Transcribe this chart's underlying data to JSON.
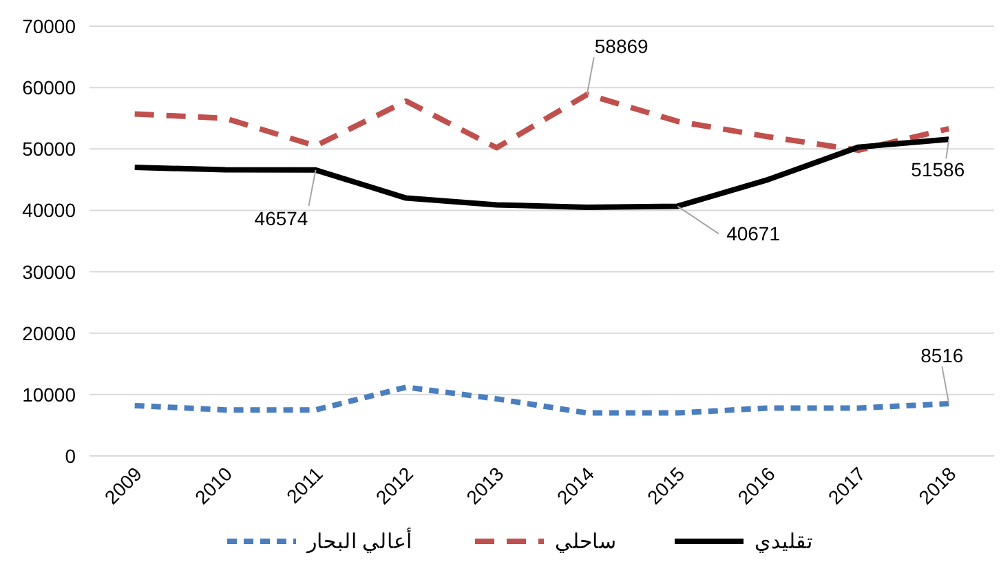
{
  "chart_data": {
    "type": "line",
    "categories": [
      "2009",
      "2010",
      "2011",
      "2012",
      "2013",
      "2014",
      "2015",
      "2016",
      "2017",
      "2018"
    ],
    "series": [
      {
        "name": "أعالي البحار",
        "color": "#4a7ebf",
        "line_style": "dotted",
        "values": [
          8200,
          7500,
          7500,
          11200,
          9300,
          7000,
          7000,
          7800,
          7800,
          8516
        ],
        "value_labels": [
          null,
          null,
          null,
          null,
          null,
          null,
          null,
          null,
          null,
          "8516"
        ]
      },
      {
        "name": "ساحلي",
        "color": "#c0504d",
        "line_style": "dashed",
        "values": [
          55700,
          55000,
          50500,
          57800,
          50200,
          58869,
          54500,
          52000,
          49800,
          53300
        ],
        "value_labels": [
          null,
          null,
          null,
          null,
          null,
          "58869",
          null,
          null,
          null,
          null
        ]
      },
      {
        "name": "تقليدي",
        "color": "#000000",
        "line_style": "solid",
        "values": [
          47000,
          46600,
          46574,
          42000,
          40900,
          40500,
          40671,
          45000,
          50300,
          51586
        ],
        "value_labels": [
          null,
          null,
          "46574",
          null,
          null,
          null,
          "40671",
          null,
          null,
          "51586"
        ]
      }
    ],
    "ylim": [
      0,
      70000
    ],
    "yticks": [
      0,
      10000,
      20000,
      30000,
      40000,
      50000,
      60000,
      70000
    ],
    "grid": "y",
    "legend": "bottom",
    "marker": "none"
  }
}
